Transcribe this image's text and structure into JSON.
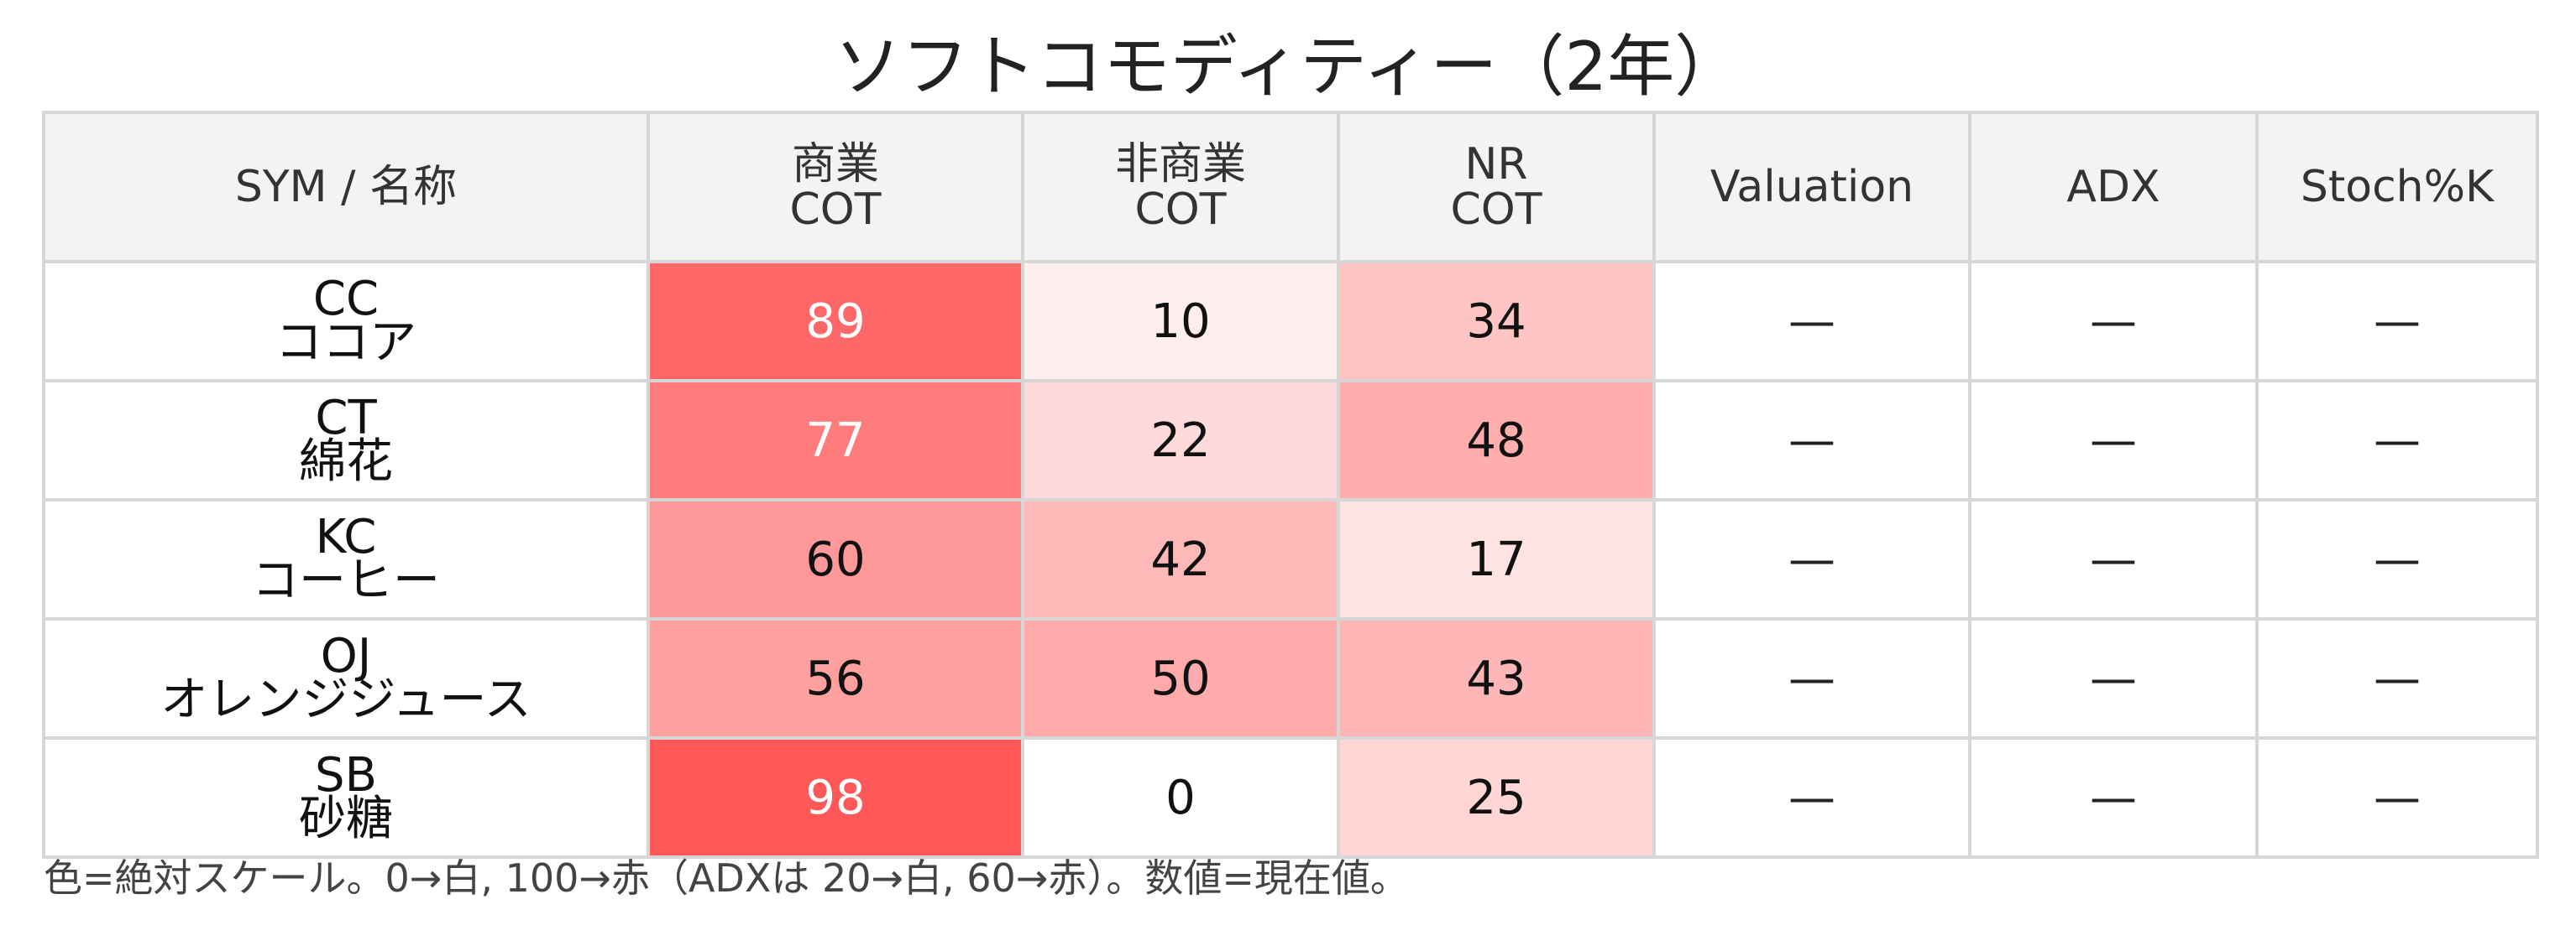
{
  "title": "ソフトコモディティー（2年）",
  "footnote": "色=絶対スケール。0→白, 100→赤（ADXは 20→白, 60→赤）。数値=現在値。",
  "colors": {
    "scale_low": "#ffffff",
    "scale_high": "#ff5555",
    "header_bg": "#f3f3f3",
    "grid": "#d6d6d6"
  },
  "chart_data": {
    "type": "heatmap",
    "title": "ソフトコモディティー（2年）",
    "color_scale": {
      "min": 0,
      "max": 100,
      "adx_min": 20,
      "adx_max": 60
    },
    "columns": [
      {
        "label1": "SYM / 名称",
        "label2": ""
      },
      {
        "label1": "商業",
        "label2": "COT"
      },
      {
        "label1": "非商業",
        "label2": "COT"
      },
      {
        "label1": "NR",
        "label2": "COT"
      },
      {
        "label1": "Valuation",
        "label2": ""
      },
      {
        "label1": "ADX",
        "label2": ""
      },
      {
        "label1": "Stoch%K",
        "label2": ""
      }
    ],
    "rows": [
      {
        "sym": "CC",
        "name": "ココア",
        "values": [
          89,
          10,
          34,
          "—",
          "—",
          "—"
        ]
      },
      {
        "sym": "CT",
        "name": "綿花",
        "values": [
          77,
          22,
          48,
          "—",
          "—",
          "—"
        ]
      },
      {
        "sym": "KC",
        "name": "コーヒー",
        "values": [
          60,
          42,
          17,
          "—",
          "—",
          "—"
        ]
      },
      {
        "sym": "OJ",
        "name": "オレンジジュース",
        "values": [
          56,
          50,
          43,
          "—",
          "—",
          "—"
        ]
      },
      {
        "sym": "SB",
        "name": "砂糖",
        "values": [
          98,
          0,
          25,
          "—",
          "—",
          "—"
        ]
      }
    ]
  }
}
